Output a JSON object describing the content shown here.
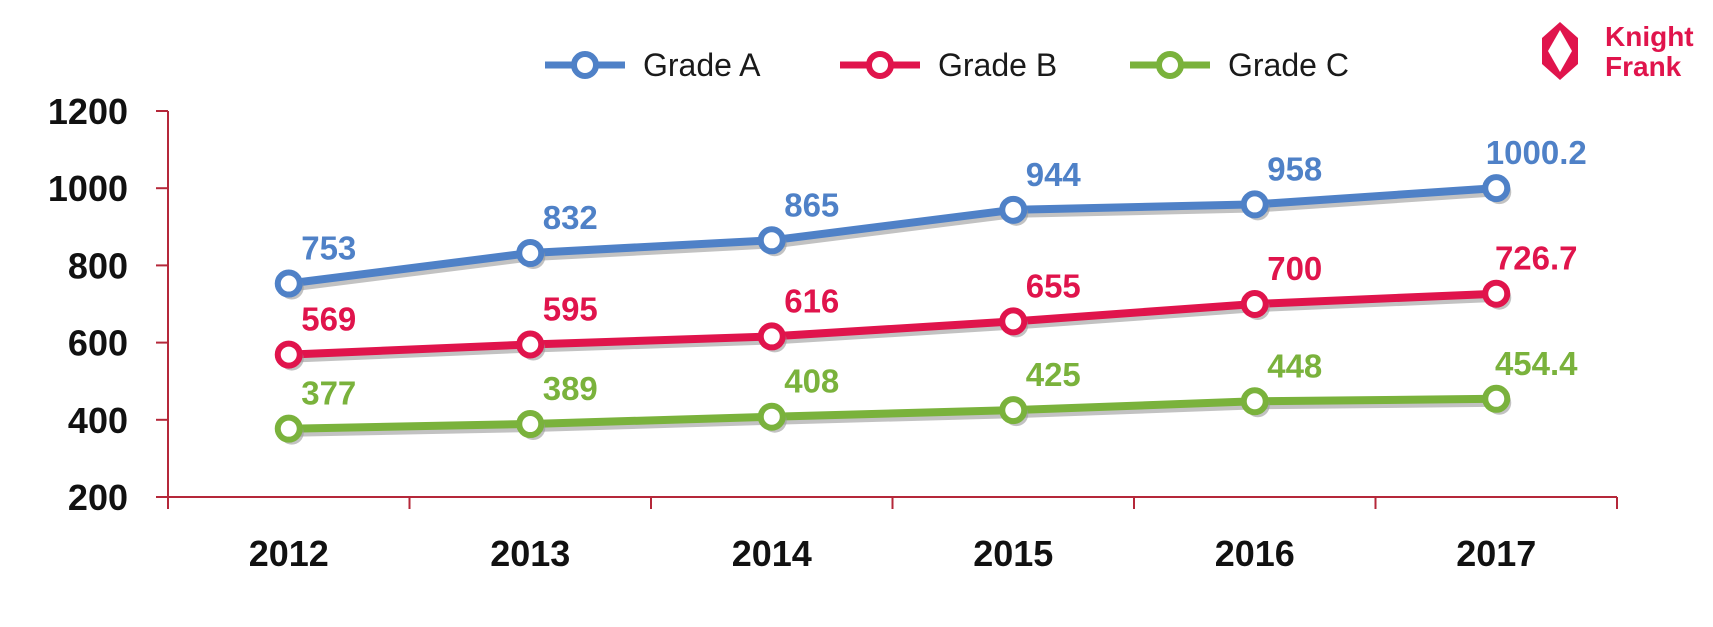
{
  "logo": {
    "line1": "Knight",
    "line2": "Frank",
    "color": "#e0144c"
  },
  "chart_data": {
    "type": "line",
    "title": "",
    "xlabel": "",
    "ylabel": "",
    "categories": [
      "2012",
      "2013",
      "2014",
      "2015",
      "2016",
      "2017"
    ],
    "ylim": [
      200,
      1200
    ],
    "yticks": [
      200,
      400,
      600,
      800,
      1000,
      1200
    ],
    "grid": false,
    "legend_position": "top",
    "axis_color": "#b5283a",
    "series": [
      {
        "name": "Grade A",
        "color": "#4f81c7",
        "values": [
          753,
          832,
          865,
          944,
          958,
          1000.2
        ],
        "labels": [
          "753",
          "832",
          "865",
          "944",
          "958",
          "1000.2"
        ]
      },
      {
        "name": "Grade B",
        "color": "#e0144c",
        "values": [
          569,
          595,
          616,
          655,
          700,
          726.7
        ],
        "labels": [
          "569",
          "595",
          "616",
          "655",
          "700",
          "726.7"
        ]
      },
      {
        "name": "Grade C",
        "color": "#7ab23c",
        "values": [
          377,
          389,
          408,
          425,
          448,
          454.4
        ],
        "labels": [
          "377",
          "389",
          "408",
          "425",
          "448",
          "454.4"
        ]
      }
    ]
  }
}
